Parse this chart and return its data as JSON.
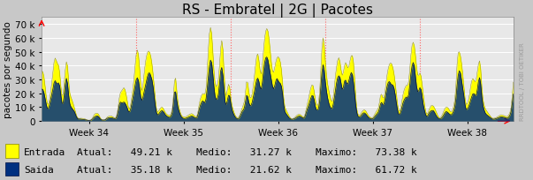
{
  "title": "RS - Embratel | 2G | Pacotes",
  "ylabel": "pacotes por segundo",
  "ylim": [
    0,
    75000
  ],
  "yticks": [
    0,
    10000,
    20000,
    30000,
    40000,
    50000,
    60000,
    70000
  ],
  "ytick_labels": [
    "0",
    "10 k",
    "20 k",
    "30 k",
    "40 k",
    "50 k",
    "60 k",
    "70 k"
  ],
  "week_labels": [
    "Week 34",
    "Week 35",
    "Week 36",
    "Week 37",
    "Week 38"
  ],
  "bg_color": "#c8c8c8",
  "plot_bg_color": "#e8e8e8",
  "grid_color": "#ffffff",
  "entrada_color": "#ffff00",
  "saida_color": "#003080",
  "entrada_edge": "#888800",
  "legend_entrada": "Entrada",
  "legend_saida": "Saida",
  "legend_text": "   Entrada    Atual:   49.21 k    Medio:   31.27 k    Maximo:   73.38 k\n   Saida      Atual:   35.18 k    Medio:   21.62 k    Maximo:   61.72 k",
  "num_points": 420,
  "watermark": "RRDTOOL / TOBI OETIKER",
  "title_fontsize": 11,
  "axis_fontsize": 7.5,
  "legend_fontsize": 8
}
